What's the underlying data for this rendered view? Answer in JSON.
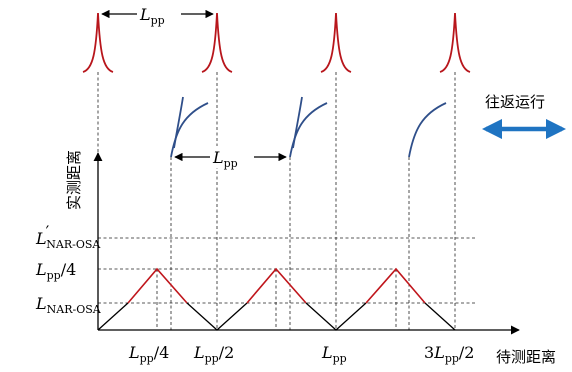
{
  "colors": {
    "peak": "#b8161c",
    "curve": "#2f4f8a",
    "arrow": "#1f74c2",
    "triangle_red": "#c0161c",
    "triangle_black": "#000000"
  },
  "labels": {
    "top_span": {
      "main": "L",
      "sub": "pp"
    },
    "mid_span": {
      "main": "L",
      "sub": "pp"
    },
    "y_axis_title": "实测距离",
    "x_axis_title": "待测距离",
    "motion_label": "往返运行",
    "y_ticks": [
      {
        "main": "L",
        "prime": "′",
        "sub": "NAR-OSA",
        "suffix": ""
      },
      {
        "main": "L",
        "prime": "",
        "sub": "pp",
        "suffix": "/4"
      },
      {
        "main": "L",
        "prime": "",
        "sub": "NAR-OSA",
        "suffix": ""
      }
    ],
    "x_ticks": [
      {
        "prefix": "",
        "main": "L",
        "sub": "pp",
        "suffix": "/4"
      },
      {
        "prefix": "",
        "main": "L",
        "sub": "pp",
        "suffix": "/2"
      },
      {
        "prefix": "",
        "main": "L",
        "sub": "pp",
        "suffix": ""
      },
      {
        "prefix": "3",
        "main": "L",
        "sub": "pp",
        "suffix": "/2"
      }
    ]
  }
}
